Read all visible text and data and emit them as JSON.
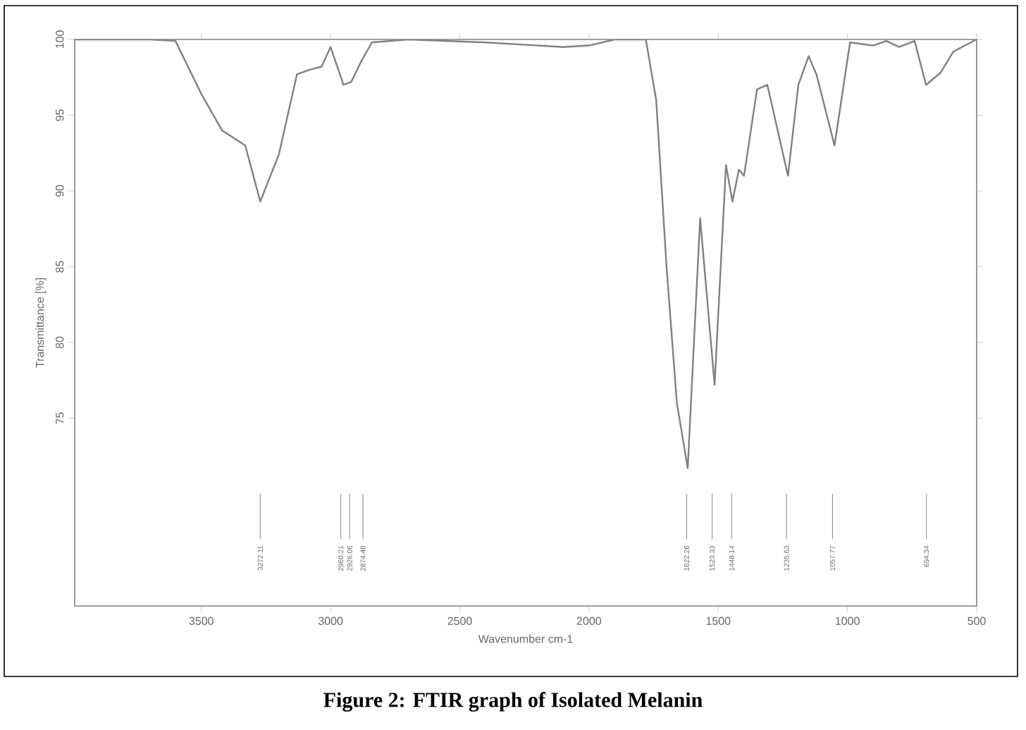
{
  "chart_data": {
    "type": "line",
    "title": "Figure 2: FTIR graph of Isolated Melanin",
    "xlabel": "Wavenumber cm-1",
    "ylabel": "Transmittance [%]",
    "xlim": [
      3990,
      500
    ],
    "ylim": [
      62.6,
      100
    ],
    "xticks": [
      3500,
      3000,
      2500,
      2000,
      1500,
      1000,
      500
    ],
    "yticks": [
      75,
      80,
      85,
      90,
      95,
      100
    ],
    "x": [
      3990,
      3700,
      3600,
      3500,
      3420,
      3330,
      3272,
      3200,
      3130,
      3080,
      3035,
      3000,
      2950,
      2920,
      2880,
      2840,
      2700,
      2400,
      2100,
      2000,
      1900,
      1780,
      1740,
      1700,
      1660,
      1618,
      1570,
      1514,
      1470,
      1445,
      1420,
      1400,
      1350,
      1310,
      1230,
      1190,
      1150,
      1120,
      1050,
      990,
      900,
      850,
      800,
      740,
      696,
      640,
      590,
      500
    ],
    "values": [
      100,
      100,
      99.9,
      96.4,
      94.0,
      93.0,
      89.3,
      92.4,
      97.7,
      98.0,
      98.2,
      99.5,
      97.0,
      97.2,
      98.6,
      99.8,
      100,
      99.8,
      99.5,
      99.6,
      100,
      100,
      96,
      85,
      76,
      71.7,
      88.2,
      77.2,
      91.7,
      89.3,
      91.4,
      91.0,
      96.7,
      97.0,
      91.0,
      97.0,
      98.9,
      97.7,
      93.0,
      99.8,
      99.6,
      99.9,
      99.5,
      99.9,
      97.0,
      97.8,
      99.2,
      100
    ],
    "color": "#808080",
    "marker": "none",
    "line_style": "solid",
    "grid": false,
    "ref_lines": [
      {
        "axis": "x",
        "value": 3272.11,
        "label": "3272.11"
      },
      {
        "axis": "x",
        "value": 2960.21,
        "label": "2960.21"
      },
      {
        "axis": "x",
        "value": 2926.06,
        "label": "2926.06"
      },
      {
        "axis": "x",
        "value": 2874.48,
        "label": "2874.48"
      },
      {
        "axis": "x",
        "value": 1622.26,
        "label": "1622.26"
      },
      {
        "axis": "x",
        "value": 1523.33,
        "label": "1523.33"
      },
      {
        "axis": "x",
        "value": 1448.14,
        "label": "1448.14"
      },
      {
        "axis": "x",
        "value": 1235.63,
        "label": "1235.63"
      },
      {
        "axis": "x",
        "value": 1057.77,
        "label": "1057.77"
      },
      {
        "axis": "x",
        "value": 694.34,
        "label": "694.34"
      }
    ]
  }
}
